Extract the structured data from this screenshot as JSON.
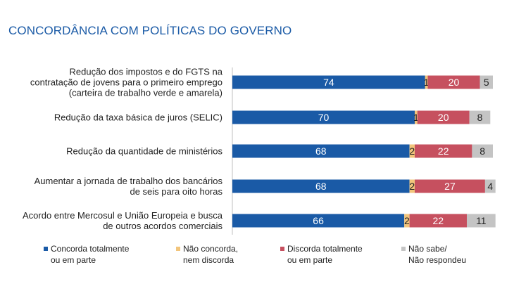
{
  "title": "CONCORDÂNCIA COM POLÍTICAS DO GOVERNO",
  "chart_data": {
    "type": "bar",
    "orientation": "horizontal",
    "stacked": true,
    "categories": [
      "Redução dos impostos e do FGTS na\ncontratação de jovens para o primeiro emprego\n(carteira de trabalho verde e amarela)",
      "Redução da taxa básica de juros (SELIC)",
      "Redução da quantidade de ministérios",
      "Aumentar a jornada de trabalho dos bancários\nde seis para oito horas",
      "Acordo entre Mercosul e União Europeia e busca\nde outros acordos comerciais"
    ],
    "series": [
      {
        "name": "Concorda totalmente\nou em parte",
        "color": "#1a5aa6",
        "values": [
          74,
          70,
          68,
          68,
          66
        ]
      },
      {
        "name": "Não concorda,\nnem discorda",
        "color": "#f2c57c",
        "values": [
          1,
          1,
          2,
          2,
          2
        ]
      },
      {
        "name": "Discorda totalmente\nou em parte",
        "color": "#c6505f",
        "values": [
          20,
          20,
          22,
          27,
          22
        ]
      },
      {
        "name": "Não sabe/\nNão respondeu",
        "color": "#c4c4c4",
        "values": [
          5,
          8,
          8,
          4,
          11
        ]
      }
    ],
    "xlim": [
      0,
      100
    ],
    "grid": false,
    "legend_position": "bottom"
  }
}
